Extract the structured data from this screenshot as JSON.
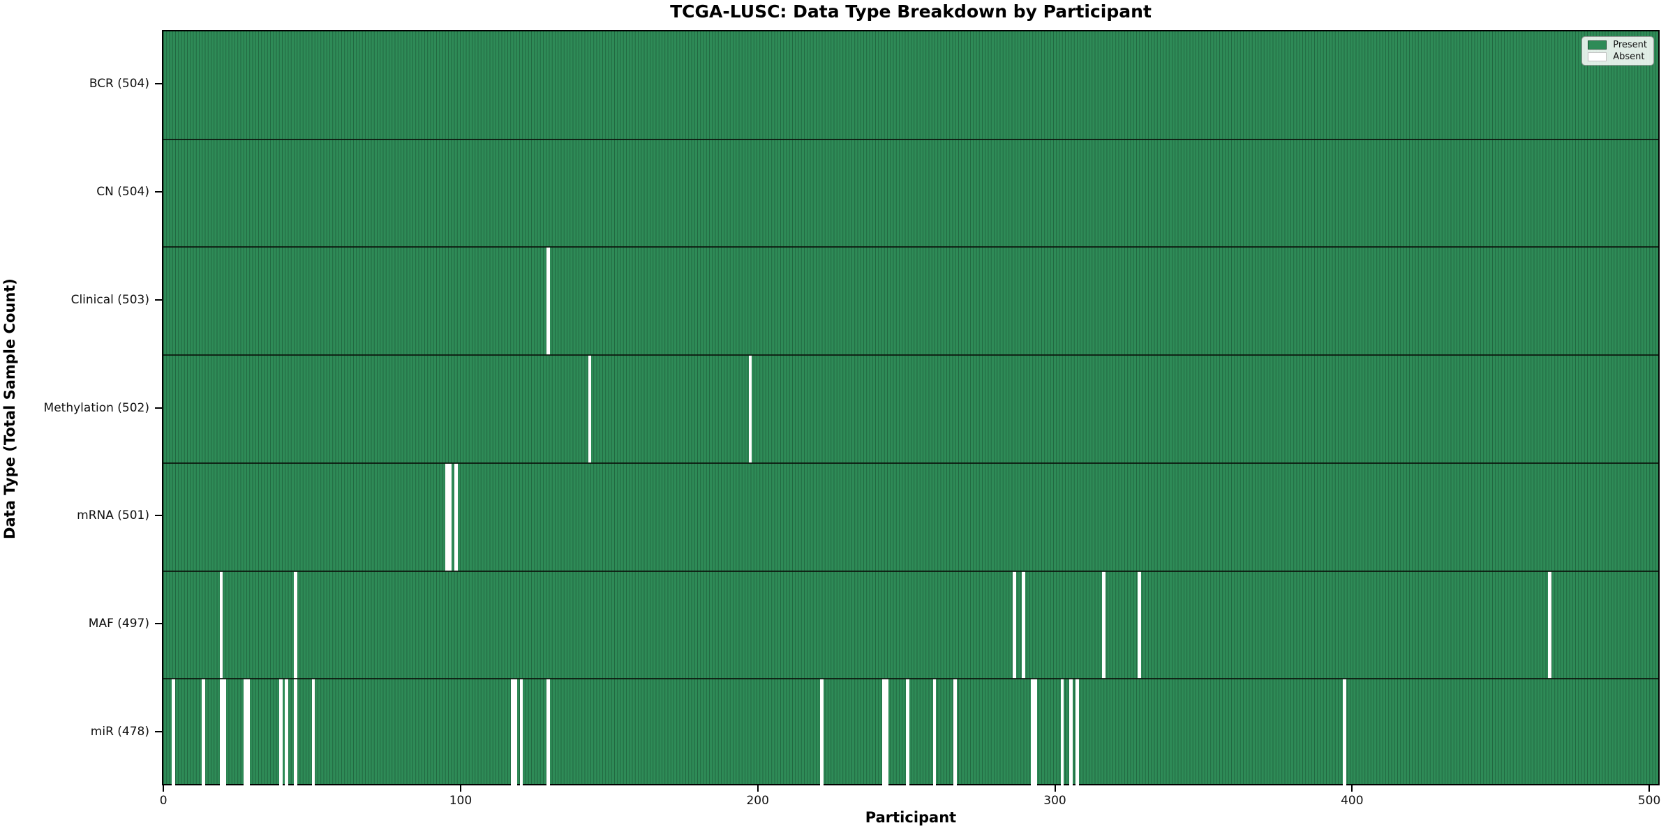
{
  "title": "TCGA-LUSC: Data Type Breakdown by Participant",
  "axes": {
    "xlabel": "Participant",
    "ylabel": "Data Type (Total Sample Count)"
  },
  "legend": {
    "present_label": "Present",
    "absent_label": "Absent"
  },
  "colors": {
    "present": "#2e8b57",
    "present_edge": "#17482d",
    "absent": "#ffffff",
    "row_divider": "#0a140c",
    "spine": "#000000",
    "legend_bg": "#f2f6f2"
  },
  "chart_data": {
    "type": "heatmap",
    "title": "TCGA-LUSC: Data Type Breakdown by Participant",
    "xlabel": "Participant",
    "ylabel": "Data Type (Total Sample Count)",
    "n_participants": 504,
    "x_ticks": [
      0,
      100,
      200,
      300,
      400,
      500
    ],
    "xlim": [
      -0.5,
      503.5
    ],
    "grid": false,
    "legend_position": "upper right",
    "legend_entries": [
      {
        "label": "Present",
        "color": "#2e8b57"
      },
      {
        "label": "Absent",
        "color": "#ffffff"
      }
    ],
    "rows": [
      {
        "label": "BCR (504)",
        "data_type": "BCR",
        "present_count": 504,
        "absent_participants": []
      },
      {
        "label": "CN (504)",
        "data_type": "CN",
        "present_count": 504,
        "absent_participants": []
      },
      {
        "label": "Clinical (503)",
        "data_type": "Clinical",
        "present_count": 503,
        "absent_participants": [
          129
        ]
      },
      {
        "label": "Methylation (502)",
        "data_type": "Methylation",
        "present_count": 502,
        "absent_participants": [
          143,
          197
        ]
      },
      {
        "label": "mRNA (501)",
        "data_type": "mRNA",
        "present_count": 501,
        "absent_participants": [
          95,
          96,
          98
        ]
      },
      {
        "label": "MAF (497)",
        "data_type": "MAF",
        "present_count": 497,
        "absent_participants": [
          19,
          44,
          286,
          289,
          316,
          328,
          466
        ]
      },
      {
        "label": "miR (478)",
        "data_type": "miR",
        "present_count": 478,
        "absent_participants": [
          3,
          13,
          19,
          20,
          27,
          28,
          39,
          41,
          44,
          50,
          117,
          118,
          120,
          129,
          221,
          242,
          243,
          250,
          259,
          266,
          292,
          293,
          302,
          305,
          307,
          397
        ]
      }
    ]
  }
}
